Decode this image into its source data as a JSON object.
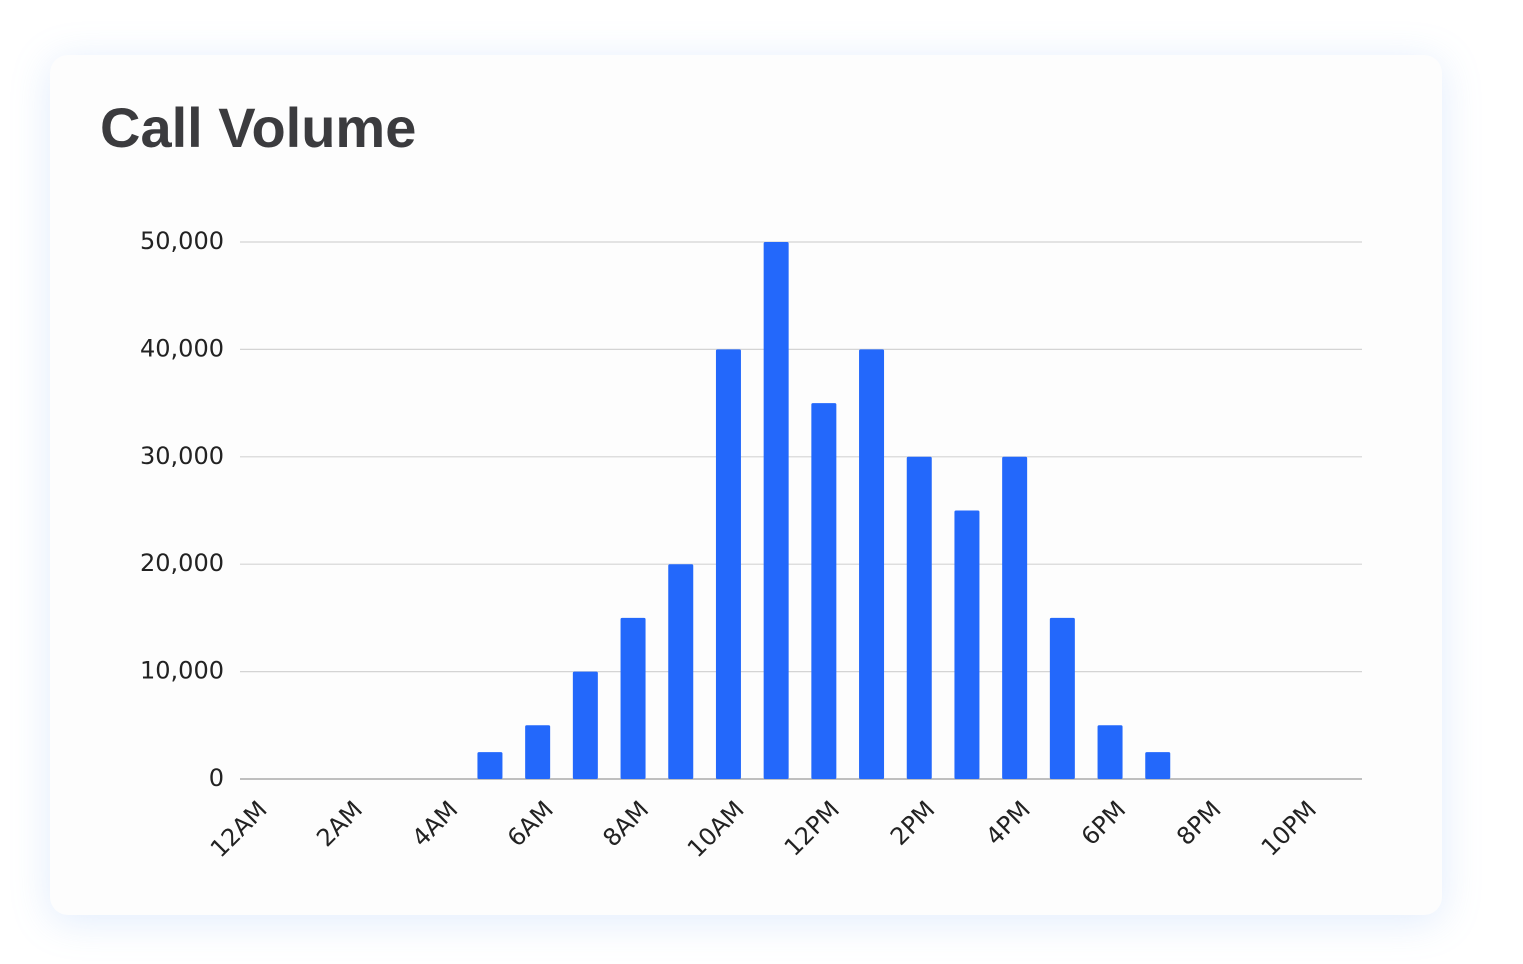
{
  "chart_data": {
    "type": "bar",
    "title": "Call Volume",
    "categories": [
      "12AM",
      null,
      "2AM",
      null,
      "4AM",
      null,
      "6AM",
      null,
      "8AM",
      null,
      "10AM",
      null,
      "12PM",
      null,
      "2PM",
      null,
      "4PM",
      null,
      "6PM",
      null,
      "8PM",
      null,
      "10PM",
      null
    ],
    "values": [
      0,
      0,
      0,
      0,
      0,
      2500,
      5000,
      10000,
      15000,
      20000,
      40000,
      50000,
      35000,
      40000,
      30000,
      25000,
      30000,
      15000,
      5000,
      2500,
      0,
      0,
      0,
      0
    ],
    "color": "#2368fb",
    "ylim": [
      0,
      50000
    ],
    "yticks": [
      0,
      {
        "value": 10000,
        "label": "10,000"
      },
      {
        "value": 20000,
        "label": "20,000"
      },
      {
        "value": 30000,
        "label": "30,000"
      },
      {
        "value": 40000,
        "label": "40,000"
      },
      {
        "value": 50000,
        "label": "50,000"
      }
    ],
    "grid": true
  }
}
